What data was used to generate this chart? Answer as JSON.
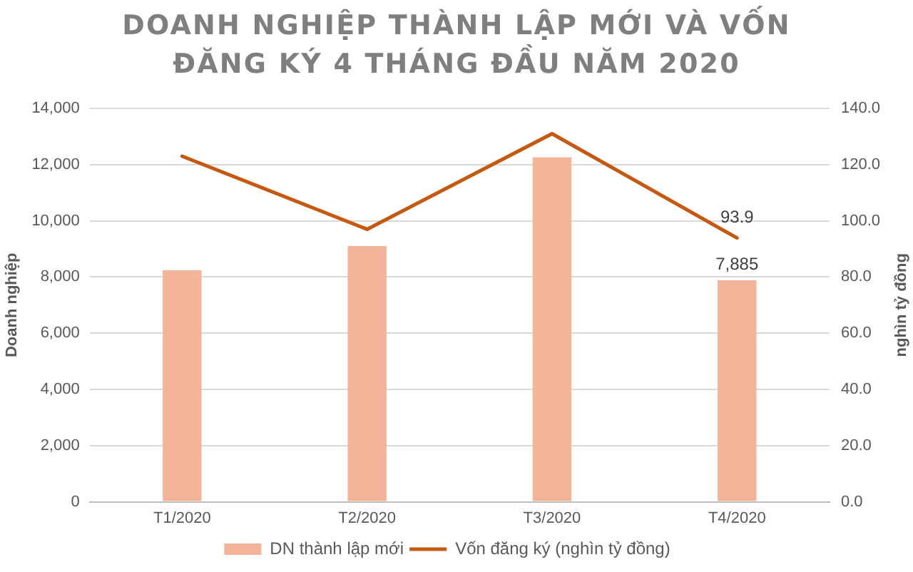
{
  "chart_data": {
    "type": "bar",
    "title": "DOANH NGHIỆP THÀNH LẬP MỚI VÀ VỐN ĐĂNG KÝ 4 THÁNG ĐẦU NĂM 2020",
    "ylabel": "Doanh nghiệp",
    "y2label": "nghìn tỷ đồng",
    "categories": [
      "T1/2020",
      "T2/2020",
      "T3/2020",
      "T4/2020"
    ],
    "series": [
      {
        "name": "DN thành lập mới",
        "color": "#f4b49a",
        "values": [
          8240,
          9100,
          12260,
          7885
        ],
        "value_labels": [
          null,
          null,
          null,
          "7,885"
        ]
      },
      {
        "name": "Vốn đăng ký (nghìn tỷ đồng)",
        "type": "line",
        "axis": "y2",
        "color": "#c65911",
        "values": [
          123,
          97,
          131,
          93.9
        ],
        "value_labels": [
          null,
          null,
          null,
          "93.9"
        ]
      }
    ],
    "ylim": [
      0,
      14000
    ],
    "yticks": [
      0,
      {
        "value": 2000,
        "label": "2,000"
      },
      {
        "value": 4000,
        "label": "4,000"
      },
      {
        "value": 6000,
        "label": "6,000"
      },
      {
        "value": 8000,
        "label": "8,000"
      },
      {
        "value": 10000,
        "label": "10,000"
      },
      {
        "value": 12000,
        "label": "12,000"
      },
      {
        "value": 14000,
        "label": "14,000"
      }
    ],
    "y2lim": [
      0,
      140
    ],
    "y2ticks": [
      {
        "value": 0,
        "label": "0.0"
      },
      {
        "value": 20,
        "label": "20.0"
      },
      {
        "value": 40,
        "label": "40.0"
      },
      {
        "value": 60,
        "label": "60.0"
      },
      {
        "value": 80,
        "label": "80.0"
      },
      {
        "value": 100,
        "label": "100.0"
      },
      {
        "value": 120,
        "label": "120.0"
      },
      {
        "value": 140,
        "label": "140.0"
      }
    ],
    "grid": "y",
    "legend": "bottom",
    "marker": "none"
  }
}
